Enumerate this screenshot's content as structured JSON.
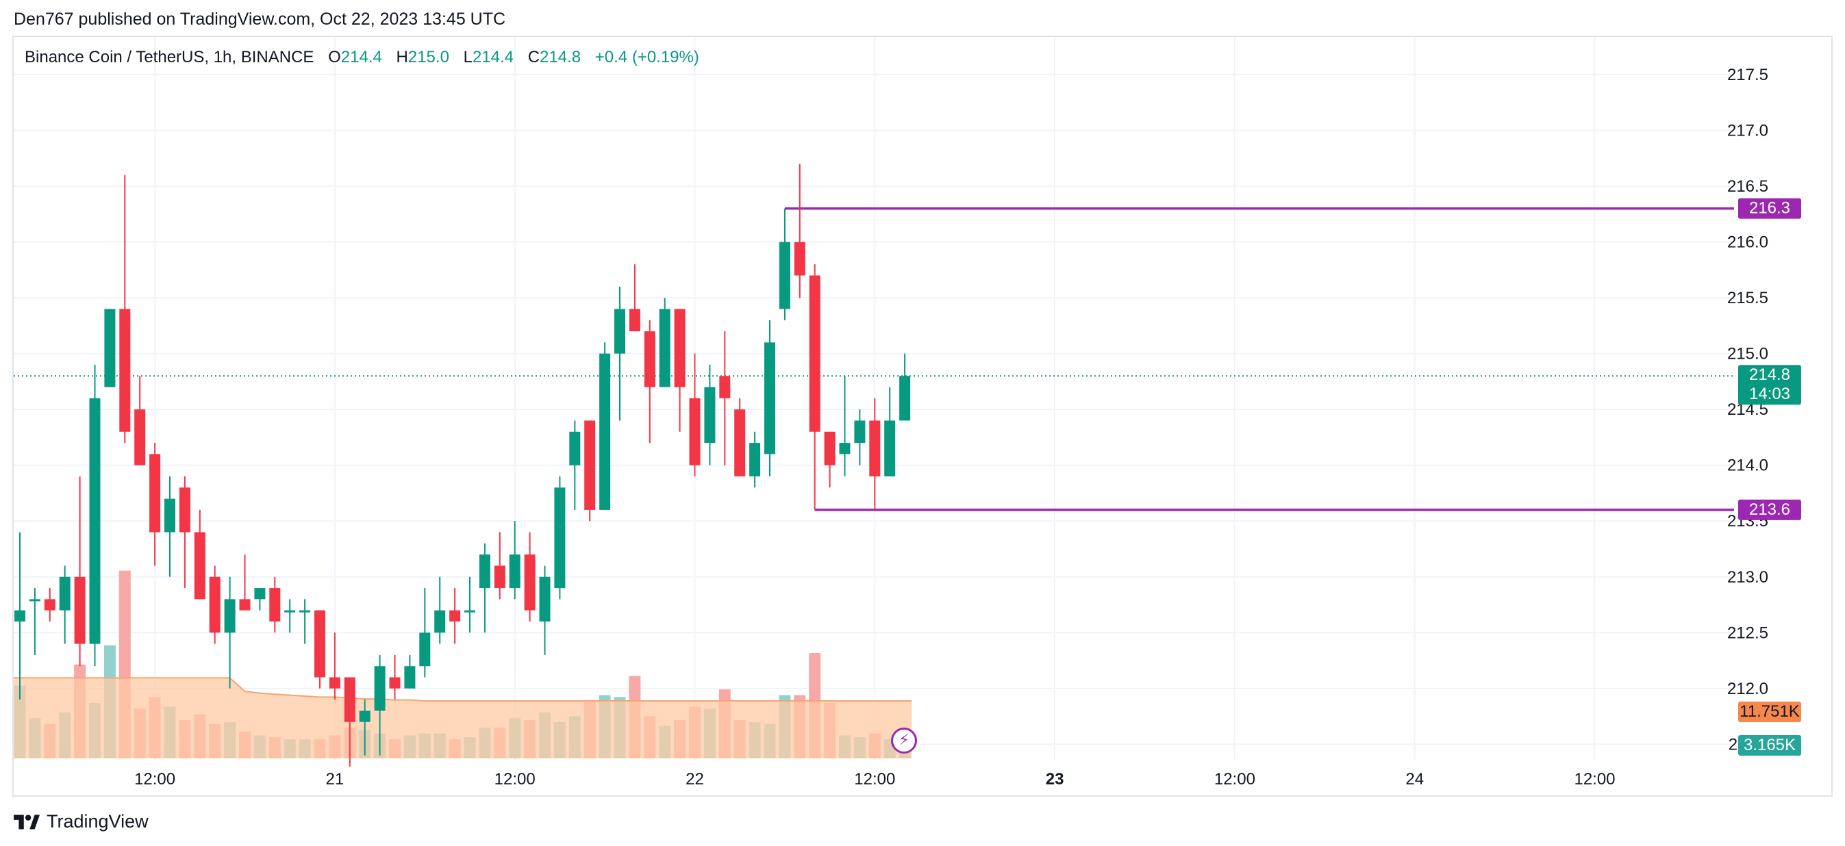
{
  "publisher_line": "Den767 published on TradingView.com, Oct 22, 2023 13:45 UTC",
  "footer": {
    "brand": "TradingView",
    "logo_icon": "tradingview-logo-icon"
  },
  "legend": {
    "symbol": "Binance Coin / TetherUS, 1h, BINANCE",
    "open_label": "O",
    "open": "214.4",
    "high_label": "H",
    "high": "215.0",
    "low_label": "L",
    "low": "214.4",
    "close_label": "C",
    "close": "214.8",
    "change": "+0.4 (+0.19%)"
  },
  "colors": {
    "up": "#089981",
    "down": "#f23645",
    "up_volume": "#92d2cc",
    "down_volume": "#f7a9a7",
    "level_line": "#9c27b0",
    "volume_ma_fill": "#ffcba5",
    "volume_ma_line": "#f7a46f",
    "volume_ma_label": "#f7874a",
    "grid": "#f0f3fa",
    "axis_text": "#131722"
  },
  "chart_data": {
    "type": "candlestick",
    "interval": "1h",
    "y_axis": {
      "range": [
        211.3,
        217.8
      ],
      "ticks": [
        "211.5",
        "212.0",
        "212.5",
        "213.0",
        "213.5",
        "214.0",
        "214.5",
        "215.0",
        "215.5",
        "216.0",
        "216.5",
        "217.0",
        "217.5"
      ]
    },
    "x_axis": {
      "ticks": [
        {
          "label": "12:00",
          "bar": 9,
          "bold": false
        },
        {
          "label": "21",
          "bar": 21,
          "bold": false
        },
        {
          "label": "12:00",
          "bar": 33,
          "bold": false
        },
        {
          "label": "22",
          "bar": 45,
          "bold": false
        },
        {
          "label": "12:00",
          "bar": 57,
          "bold": false
        },
        {
          "label": "23",
          "bar": 69,
          "bold": true
        },
        {
          "label": "12:00",
          "bar": 81,
          "bold": false
        },
        {
          "label": "24",
          "bar": 93,
          "bold": false
        },
        {
          "label": "12:00",
          "bar": 105,
          "bold": false
        }
      ]
    },
    "candles": [
      {
        "o": 212.6,
        "h": 213.4,
        "l": 211.9,
        "c": 212.7
      },
      {
        "o": 212.8,
        "h": 212.9,
        "l": 212.3,
        "c": 212.8
      },
      {
        "o": 212.8,
        "h": 212.9,
        "l": 212.6,
        "c": 212.7
      },
      {
        "o": 212.7,
        "h": 213.1,
        "l": 212.4,
        "c": 213.0
      },
      {
        "o": 213.0,
        "h": 213.9,
        "l": 212.2,
        "c": 212.4
      },
      {
        "o": 212.4,
        "h": 214.9,
        "l": 212.2,
        "c": 214.6
      },
      {
        "o": 214.7,
        "h": 215.4,
        "l": 214.7,
        "c": 215.4
      },
      {
        "o": 215.4,
        "h": 216.6,
        "l": 214.2,
        "c": 214.3
      },
      {
        "o": 214.5,
        "h": 214.8,
        "l": 214.0,
        "c": 214.0
      },
      {
        "o": 214.1,
        "h": 214.2,
        "l": 213.1,
        "c": 213.4
      },
      {
        "o": 213.4,
        "h": 213.9,
        "l": 213.0,
        "c": 213.7
      },
      {
        "o": 213.8,
        "h": 213.9,
        "l": 212.9,
        "c": 213.4
      },
      {
        "o": 213.4,
        "h": 213.6,
        "l": 212.8,
        "c": 212.8
      },
      {
        "o": 213.0,
        "h": 213.1,
        "l": 212.4,
        "c": 212.5
      },
      {
        "o": 212.5,
        "h": 213.0,
        "l": 212.0,
        "c": 212.8
      },
      {
        "o": 212.8,
        "h": 213.2,
        "l": 212.7,
        "c": 212.7
      },
      {
        "o": 212.8,
        "h": 212.9,
        "l": 212.7,
        "c": 212.9
      },
      {
        "o": 212.9,
        "h": 213.0,
        "l": 212.5,
        "c": 212.6
      },
      {
        "o": 212.7,
        "h": 212.8,
        "l": 212.5,
        "c": 212.7
      },
      {
        "o": 212.7,
        "h": 212.8,
        "l": 212.4,
        "c": 212.7
      },
      {
        "o": 212.7,
        "h": 212.7,
        "l": 212.0,
        "c": 212.1
      },
      {
        "o": 212.1,
        "h": 212.5,
        "l": 211.9,
        "c": 212.0
      },
      {
        "o": 212.1,
        "h": 212.1,
        "l": 211.3,
        "c": 211.7
      },
      {
        "o": 211.7,
        "h": 211.9,
        "l": 211.4,
        "c": 211.8
      },
      {
        "o": 211.8,
        "h": 212.3,
        "l": 211.4,
        "c": 212.2
      },
      {
        "o": 212.1,
        "h": 212.3,
        "l": 211.9,
        "c": 212.0
      },
      {
        "o": 212.0,
        "h": 212.3,
        "l": 212.0,
        "c": 212.2
      },
      {
        "o": 212.2,
        "h": 212.9,
        "l": 212.1,
        "c": 212.5
      },
      {
        "o": 212.5,
        "h": 213.0,
        "l": 212.4,
        "c": 212.7
      },
      {
        "o": 212.7,
        "h": 212.9,
        "l": 212.4,
        "c": 212.6
      },
      {
        "o": 212.7,
        "h": 213.0,
        "l": 212.5,
        "c": 212.7
      },
      {
        "o": 212.9,
        "h": 213.3,
        "l": 212.5,
        "c": 213.2
      },
      {
        "o": 213.1,
        "h": 213.4,
        "l": 212.8,
        "c": 212.9
      },
      {
        "o": 212.9,
        "h": 213.5,
        "l": 212.8,
        "c": 213.2
      },
      {
        "o": 213.2,
        "h": 213.4,
        "l": 212.6,
        "c": 212.7
      },
      {
        "o": 212.6,
        "h": 213.1,
        "l": 212.3,
        "c": 213.0
      },
      {
        "o": 212.9,
        "h": 213.9,
        "l": 212.8,
        "c": 213.8
      },
      {
        "o": 214.0,
        "h": 214.4,
        "l": 213.6,
        "c": 214.3
      },
      {
        "o": 214.4,
        "h": 214.4,
        "l": 213.5,
        "c": 213.6
      },
      {
        "o": 213.6,
        "h": 215.1,
        "l": 213.6,
        "c": 215.0
      },
      {
        "o": 215.0,
        "h": 215.6,
        "l": 214.4,
        "c": 215.4
      },
      {
        "o": 215.4,
        "h": 215.8,
        "l": 215.2,
        "c": 215.2
      },
      {
        "o": 215.2,
        "h": 215.3,
        "l": 214.2,
        "c": 214.7
      },
      {
        "o": 214.7,
        "h": 215.5,
        "l": 214.7,
        "c": 215.4
      },
      {
        "o": 215.4,
        "h": 215.4,
        "l": 214.3,
        "c": 214.7
      },
      {
        "o": 214.6,
        "h": 215.0,
        "l": 213.9,
        "c": 214.0
      },
      {
        "o": 214.2,
        "h": 214.9,
        "l": 214.0,
        "c": 214.7
      },
      {
        "o": 214.8,
        "h": 215.2,
        "l": 214.0,
        "c": 214.6
      },
      {
        "o": 214.5,
        "h": 214.6,
        "l": 213.9,
        "c": 213.9
      },
      {
        "o": 213.9,
        "h": 214.3,
        "l": 213.8,
        "c": 214.2
      },
      {
        "o": 214.1,
        "h": 215.3,
        "l": 213.9,
        "c": 215.1
      },
      {
        "o": 215.4,
        "h": 216.3,
        "l": 215.3,
        "c": 216.0
      },
      {
        "o": 216.0,
        "h": 216.7,
        "l": 215.5,
        "c": 215.7
      },
      {
        "o": 215.7,
        "h": 215.8,
        "l": 213.6,
        "c": 214.3
      },
      {
        "o": 214.3,
        "h": 214.3,
        "l": 213.8,
        "c": 214.0
      },
      {
        "o": 214.1,
        "h": 214.8,
        "l": 213.9,
        "c": 214.2
      },
      {
        "o": 214.2,
        "h": 214.5,
        "l": 214.0,
        "c": 214.4
      },
      {
        "o": 214.4,
        "h": 214.6,
        "l": 213.6,
        "c": 213.9
      },
      {
        "o": 213.9,
        "h": 214.7,
        "l": 213.9,
        "c": 214.4
      },
      {
        "o": 214.4,
        "h": 215.0,
        "l": 214.4,
        "c": 214.8
      }
    ],
    "volume": {
      "values": [
        3.8,
        2.1,
        1.8,
        2.4,
        4.9,
        2.9,
        5.9,
        9.8,
        2.6,
        3.2,
        2.7,
        2.0,
        2.3,
        1.8,
        1.9,
        1.4,
        1.2,
        1.1,
        1.0,
        1.0,
        1.0,
        1.2,
        1.6,
        1.5,
        1.3,
        1.0,
        1.2,
        1.3,
        1.3,
        1.0,
        1.1,
        1.6,
        1.6,
        2.1,
        2.0,
        2.4,
        1.9,
        2.2,
        3.0,
        3.3,
        3.2,
        4.3,
        2.2,
        1.7,
        2.0,
        2.7,
        2.6,
        3.6,
        2.0,
        1.9,
        1.8,
        3.3,
        3.3,
        5.5,
        2.9,
        1.2,
        1.1,
        1.3,
        1.0,
        1.0
      ],
      "ma": [
        4.2,
        4.2,
        4.2,
        4.2,
        4.2,
        4.2,
        4.2,
        4.2,
        4.2,
        4.2,
        4.2,
        4.2,
        4.2,
        4.2,
        4.2,
        3.5,
        3.4,
        3.35,
        3.3,
        3.25,
        3.2,
        3.2,
        3.15,
        3.1,
        3.1,
        3.05,
        3.05,
        3.0,
        3.0,
        3.0,
        3.0,
        3.0,
        3.0,
        3.0,
        3.0,
        3.0,
        3.0,
        3.0,
        3.0,
        3.0,
        3.0,
        3.0,
        3.0,
        3.0,
        3.0,
        3.0,
        3.0,
        3.0,
        3.0,
        3.0,
        3.0,
        3.0,
        3.0,
        3.0,
        3.0,
        3.0,
        3.0,
        3.0,
        3.0,
        3.0
      ],
      "scale_max": 18
    },
    "levels": [
      {
        "value": 216.3,
        "label": "216.3",
        "from_bar": 51
      },
      {
        "value": 213.6,
        "label": "213.6",
        "from_bar": 53
      }
    ],
    "price_labels": {
      "last_price": "214.8",
      "countdown": "14:03",
      "volume_ma": "11.751K",
      "volume_last": "3.165K"
    }
  }
}
